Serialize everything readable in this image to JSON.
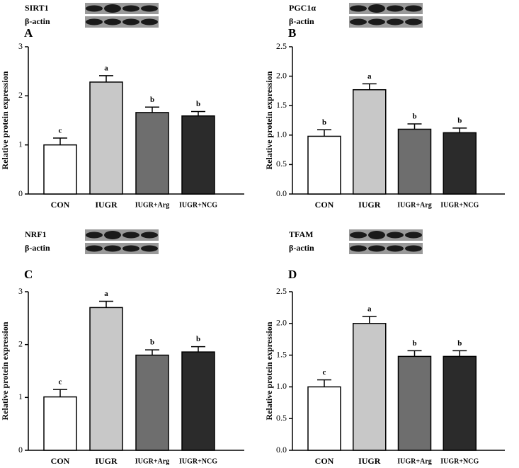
{
  "chart_data": [
    {
      "type": "bar",
      "panel": "A",
      "blot_labels": [
        "SIRT1",
        "β-actin"
      ],
      "y_label": "Relative protein expression",
      "categories": [
        "CON",
        "IUGR",
        "IUGR+Arg",
        "IUGR+NCG"
      ],
      "values": [
        1.0,
        2.28,
        1.66,
        1.59
      ],
      "errors": [
        0.14,
        0.13,
        0.11,
        0.09
      ],
      "annotations": [
        "c",
        "a",
        "b",
        "b"
      ],
      "colors": [
        "#ffffff",
        "#c8c8c8",
        "#6e6e6e",
        "#2b2b2b"
      ],
      "ylim": [
        0,
        3
      ],
      "yticks": [
        0,
        1,
        2,
        3
      ]
    },
    {
      "type": "bar",
      "panel": "B",
      "blot_labels": [
        "PGC1α",
        "β-actin"
      ],
      "y_label": "Relative protein expression",
      "categories": [
        "CON",
        "IUGR",
        "IUGR+Arg",
        "IUGR+NCG"
      ],
      "values": [
        0.98,
        1.77,
        1.1,
        1.04
      ],
      "errors": [
        0.11,
        0.1,
        0.09,
        0.08
      ],
      "annotations": [
        "b",
        "a",
        "b",
        "b"
      ],
      "colors": [
        "#ffffff",
        "#c8c8c8",
        "#6e6e6e",
        "#2b2b2b"
      ],
      "ylim": [
        0,
        2.5
      ],
      "yticks": [
        {
          "value": 0,
          "label": "0.0"
        },
        0.5,
        {
          "value": 1,
          "label": "1.0"
        },
        1.5,
        {
          "value": 2,
          "label": "2.0"
        },
        2.5
      ]
    },
    {
      "type": "bar",
      "panel": "C",
      "blot_labels": [
        "NRF1",
        "β-actin"
      ],
      "y_label": "Relative protein expression",
      "categories": [
        "CON",
        "IUGR",
        "IUGR+Arg",
        "IUGR+NCG"
      ],
      "values": [
        1.01,
        2.7,
        1.8,
        1.86
      ],
      "errors": [
        0.14,
        0.12,
        0.1,
        0.1
      ],
      "annotations": [
        "c",
        "a",
        "b",
        "b"
      ],
      "colors": [
        "#ffffff",
        "#c8c8c8",
        "#6e6e6e",
        "#2b2b2b"
      ],
      "ylim": [
        0,
        3
      ],
      "yticks": [
        0,
        1,
        2,
        3
      ]
    },
    {
      "type": "bar",
      "panel": "D",
      "blot_labels": [
        "TFAM",
        "β-actin"
      ],
      "y_label": "Relative protein expression",
      "categories": [
        "CON",
        "IUGR",
        "IUGR+Arg",
        "IUGR+NCG"
      ],
      "values": [
        1.0,
        2.0,
        1.48,
        1.48
      ],
      "errors": [
        0.11,
        0.11,
        0.09,
        0.09
      ],
      "annotations": [
        "c",
        "a",
        "b",
        "b"
      ],
      "colors": [
        "#ffffff",
        "#c8c8c8",
        "#6e6e6e",
        "#2b2b2b"
      ],
      "ylim": [
        0,
        2.5
      ],
      "yticks": [
        {
          "value": 0,
          "label": "0.0"
        },
        0.5,
        {
          "value": 1,
          "label": "1.0"
        },
        1.5,
        {
          "value": 2,
          "label": "2.0"
        },
        2.5
      ]
    }
  ]
}
